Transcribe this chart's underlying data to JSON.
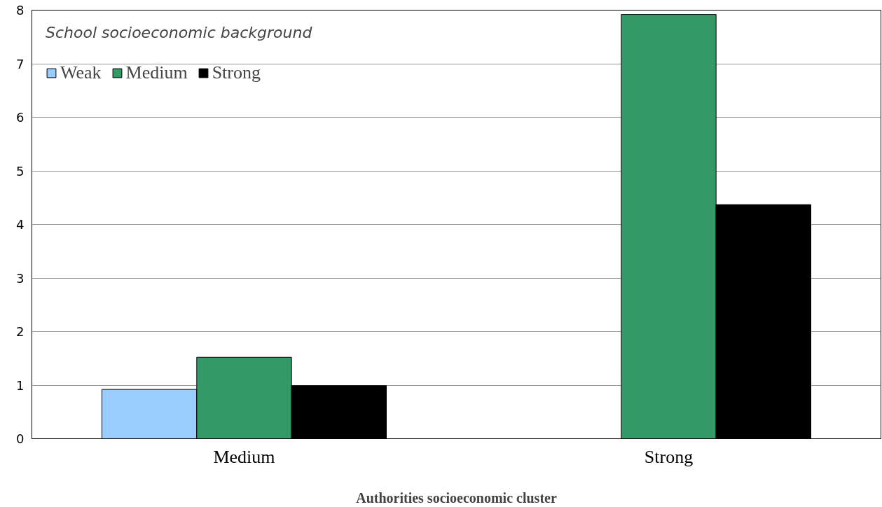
{
  "chart_data": {
    "type": "bar",
    "xlabel": "Authorities socioeconomic cluster",
    "legend_title": "School socioeconomic background",
    "categories": [
      "Medium",
      "Strong"
    ],
    "series": [
      {
        "name": "Weak",
        "color": "#99ccff",
        "values": [
          0.92,
          null
        ]
      },
      {
        "name": "Medium",
        "color": "#339966",
        "values": [
          1.52,
          7.92
        ]
      },
      {
        "name": "Strong",
        "color": "#000000",
        "values": [
          0.99,
          4.37
        ]
      }
    ],
    "ylim": [
      0,
      8
    ],
    "yticks": [
      0,
      1,
      2,
      3,
      4,
      5,
      6,
      7,
      8
    ],
    "grid": "y",
    "legend": "top left"
  }
}
